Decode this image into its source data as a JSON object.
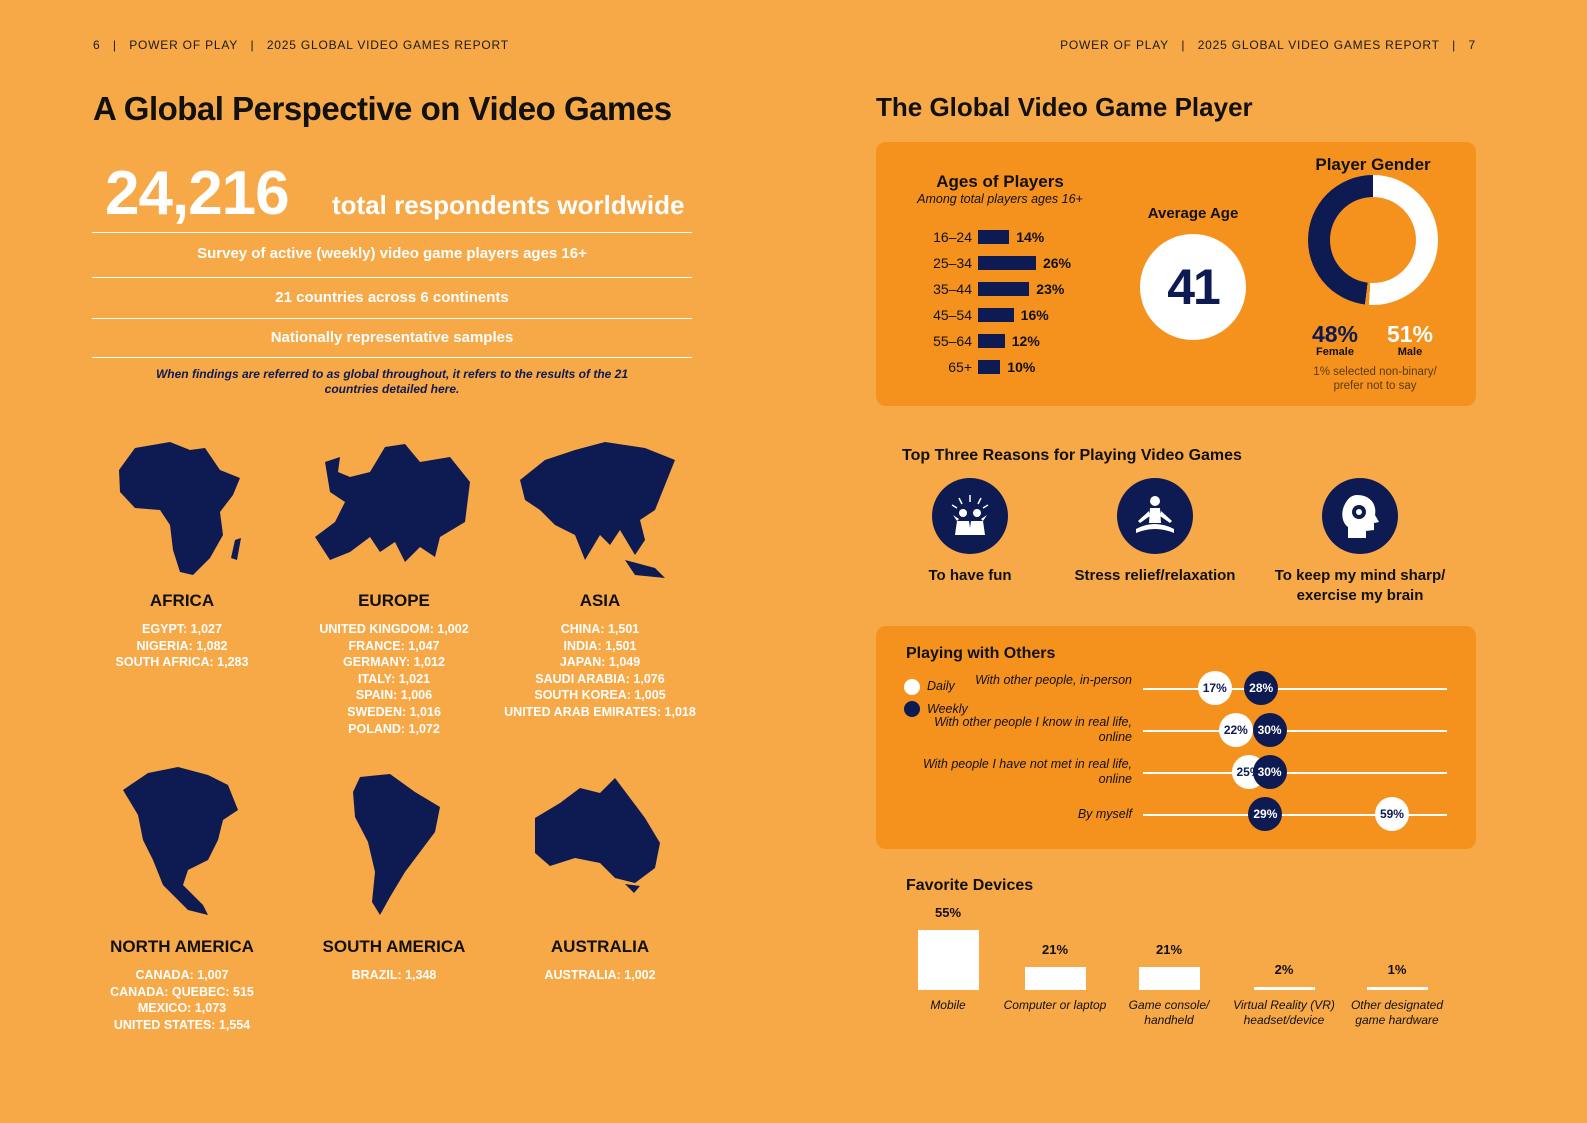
{
  "header_left": {
    "page": "6",
    "brand": "POWER OF PLAY",
    "report": "2025 GLOBAL VIDEO GAMES REPORT"
  },
  "header_right": {
    "page": "7",
    "brand": "POWER OF PLAY",
    "report": "2025 GLOBAL VIDEO GAMES REPORT"
  },
  "left": {
    "title": "A Global Perspective on Video Games",
    "respondents": "24,216",
    "respondents_label": "total respondents worldwide",
    "facts": [
      "Survey of active (weekly) video game players ages 16+",
      "21 countries across 6 continents",
      "Nationally representative samples"
    ],
    "note": "When findings are referred to as global throughout, it refers to the results of the 21 countries detailed here.",
    "continents": [
      {
        "name": "AFRICA",
        "countries": [
          "EGYPT: 1,027",
          "NIGERIA: 1,082",
          "SOUTH AFRICA: 1,283"
        ]
      },
      {
        "name": "EUROPE",
        "countries": [
          "UNITED KINGDOM: 1,002",
          "FRANCE: 1,047",
          "GERMANY: 1,012",
          "ITALY: 1,021",
          "SPAIN: 1,006",
          "SWEDEN: 1,016",
          "POLAND: 1,072"
        ]
      },
      {
        "name": "ASIA",
        "countries": [
          "CHINA: 1,501",
          "INDIA: 1,501",
          "JAPAN: 1,049",
          "SAUDI ARABIA: 1,076",
          "SOUTH KOREA: 1,005",
          "UNITED ARAB EMIRATES: 1,018"
        ]
      },
      {
        "name": "NORTH AMERICA",
        "countries": [
          "CANADA: 1,007",
          "CANADA: QUEBEC: 515",
          "MEXICO: 1,073",
          "UNITED STATES: 1,554"
        ]
      },
      {
        "name": "SOUTH AMERICA",
        "countries": [
          "BRAZIL: 1,348"
        ]
      },
      {
        "name": "AUSTRALIA",
        "countries": [
          "AUSTRALIA: 1,002"
        ]
      }
    ]
  },
  "right": {
    "title": "The Global Video Game Player",
    "ages": {
      "title": "Ages of Players",
      "subtitle": "Among total players ages 16+",
      "rows": [
        {
          "label": "16–24",
          "value": 14,
          "text": "14%"
        },
        {
          "label": "25–34",
          "value": 26,
          "text": "26%"
        },
        {
          "label": "35–44",
          "value": 23,
          "text": "23%"
        },
        {
          "label": "45–54",
          "value": 16,
          "text": "16%"
        },
        {
          "label": "55–64",
          "value": 12,
          "text": "12%"
        },
        {
          "label": "65+",
          "value": 10,
          "text": "10%"
        }
      ]
    },
    "average_age": {
      "label": "Average Age",
      "value": "41"
    },
    "gender": {
      "title": "Player Gender",
      "female": "48%",
      "female_label": "Female",
      "male": "51%",
      "male_label": "Male",
      "note": "1% selected non-binary/ prefer not to say",
      "female_value": 48,
      "male_value": 51
    },
    "reasons": {
      "title": "Top Three Reasons for Playing Video Games",
      "items": [
        {
          "label": "To have fun",
          "icon": "cheering-people-icon"
        },
        {
          "label": "Stress relief/relaxation",
          "icon": "meditation-icon"
        },
        {
          "label": "To keep my mind sharp/ exercise my brain",
          "icon": "head-gear-icon"
        }
      ]
    },
    "playing": {
      "title": "Playing with Others",
      "legend": {
        "daily": "Daily",
        "weekly": "Weekly"
      },
      "rows": [
        {
          "label": "With other people, in-person",
          "daily": 17,
          "weekly": 28,
          "daily_text": "17%",
          "weekly_text": "28%"
        },
        {
          "label": "With other people I know in real life, online",
          "daily": 22,
          "weekly": 30,
          "daily_text": "22%",
          "weekly_text": "30%"
        },
        {
          "label": "With people I have not met in real life, online",
          "daily": 25,
          "weekly": 30,
          "daily_text": "25%",
          "weekly_text": "30%"
        },
        {
          "label": "By myself",
          "daily": 59,
          "weekly": 29,
          "daily_text": "59%",
          "weekly_text": "29%"
        }
      ]
    },
    "devices": {
      "title": "Favorite Devices",
      "items": [
        {
          "label": "Mobile",
          "value": 55,
          "text": "55%"
        },
        {
          "label": "Computer or laptop",
          "value": 21,
          "text": "21%"
        },
        {
          "label": "Game console/ handheld",
          "value": 21,
          "text": "21%"
        },
        {
          "label": "Virtual Reality (VR) headset/device",
          "value": 2,
          "text": "2%"
        },
        {
          "label": "Other designated game hardware",
          "value": 1,
          "text": "1%"
        }
      ]
    }
  },
  "colors": {
    "background": "#F7A847",
    "panel": "#F5921E",
    "navy": "#0E1A52",
    "white": "#FFFFFF"
  }
}
